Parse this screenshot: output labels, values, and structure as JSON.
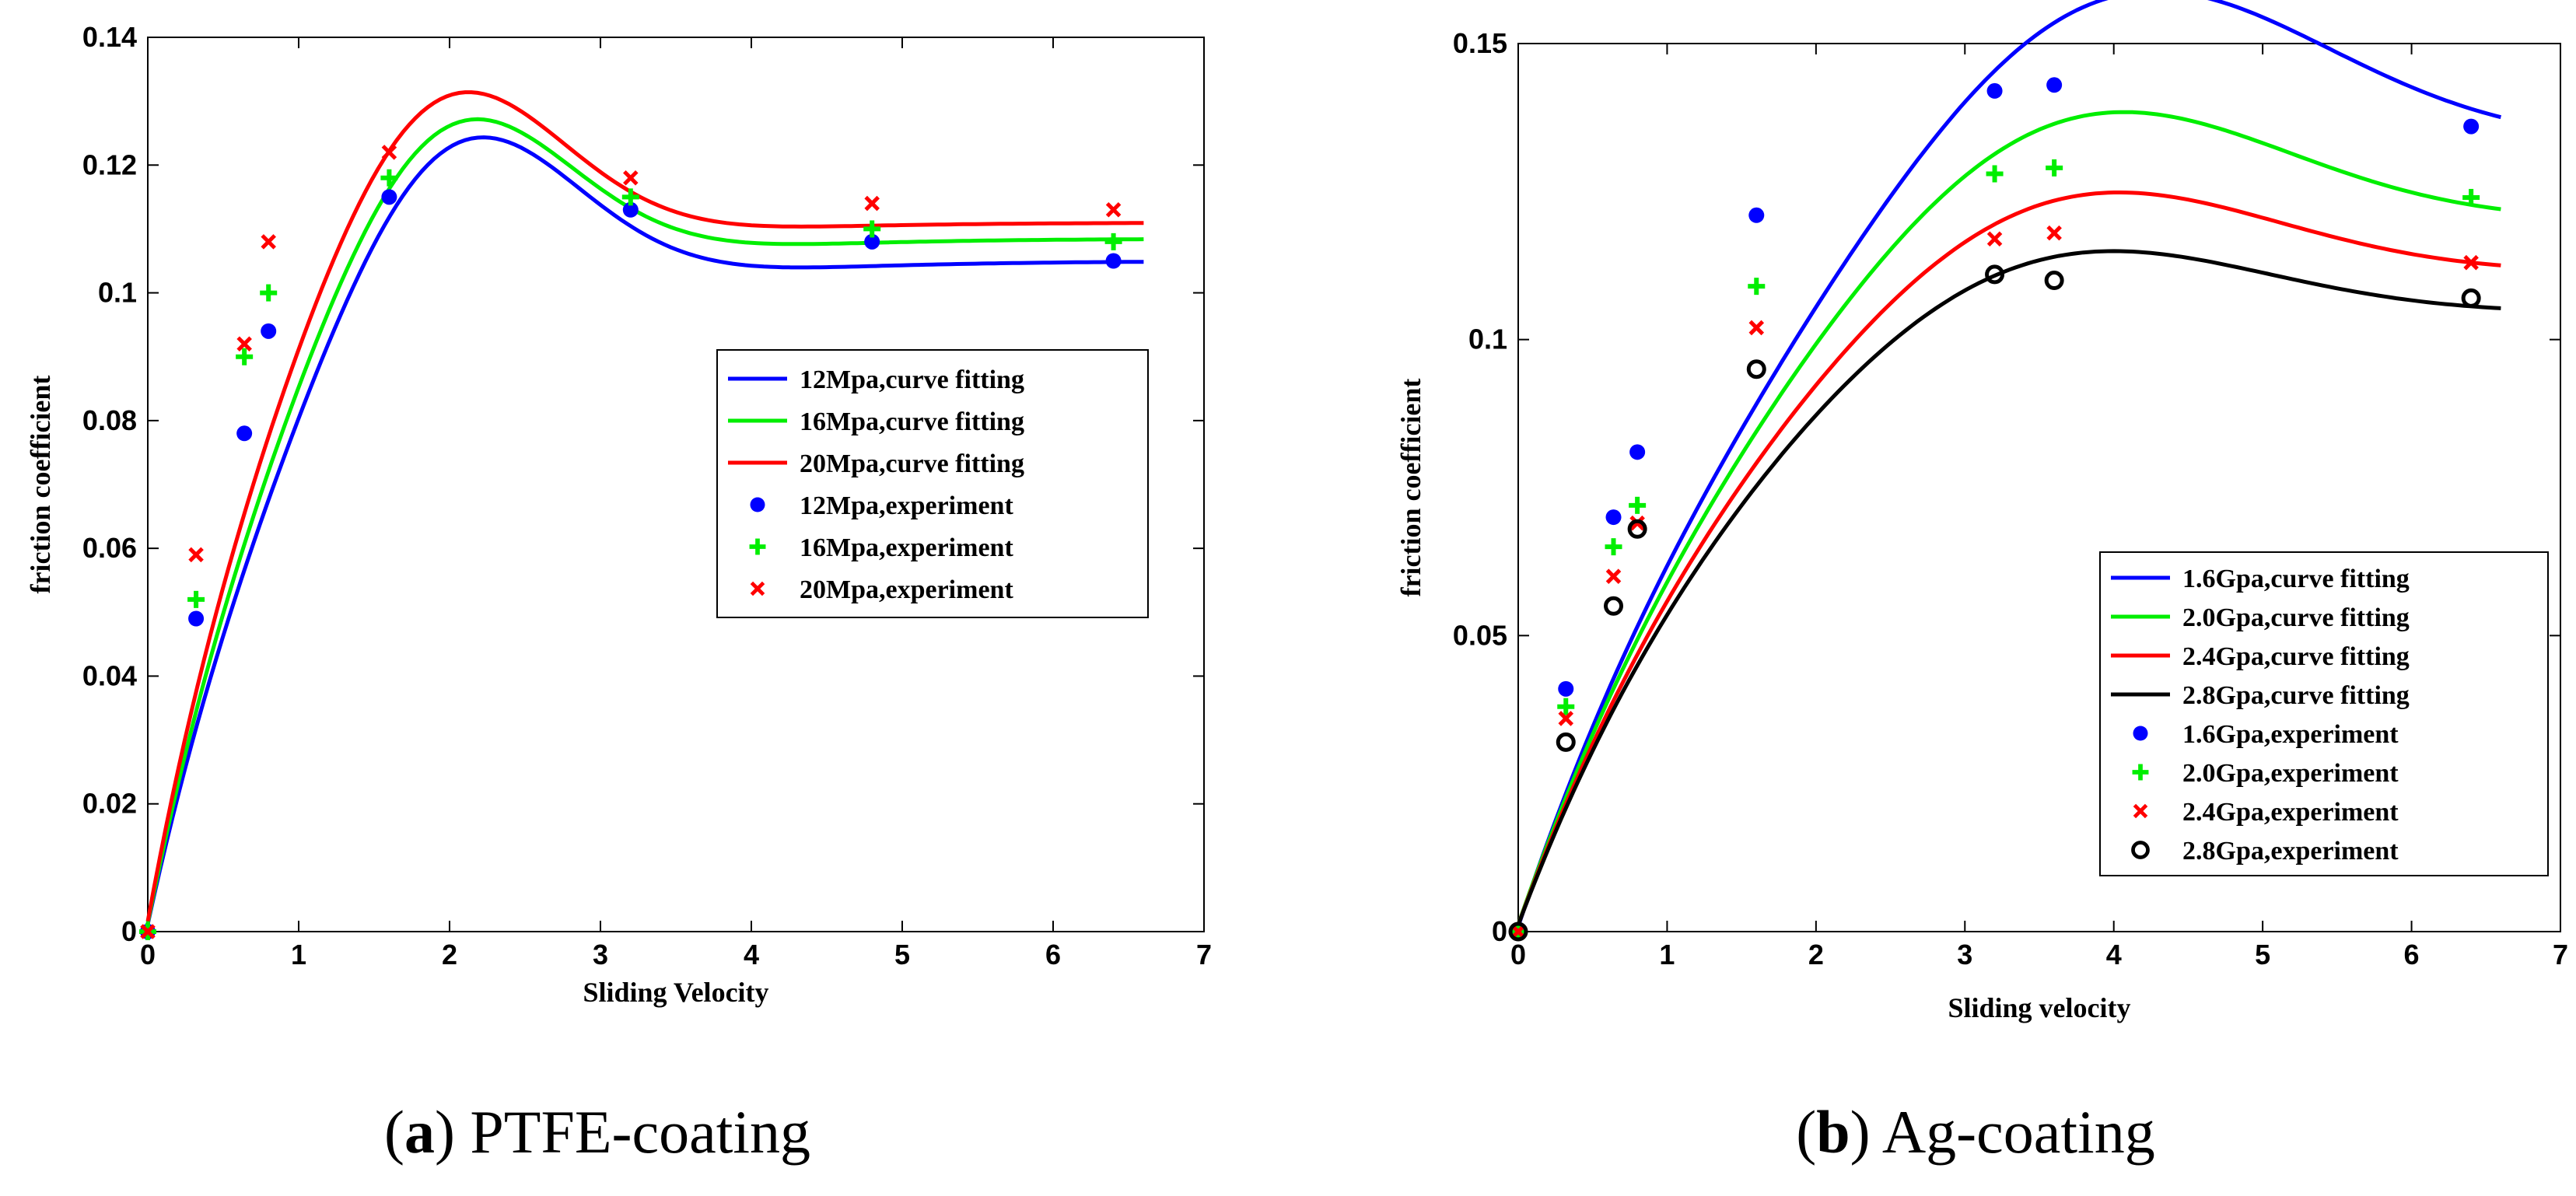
{
  "chart_data": [
    {
      "type": "line",
      "caption": {
        "letter": "a",
        "text": "PTFE-coating"
      },
      "xlabel": "Sliding Velocity",
      "ylabel": "friction coefficient",
      "xlim": [
        0,
        7
      ],
      "ylim": [
        0,
        0.14
      ],
      "xticks": [
        0,
        1,
        2,
        3,
        4,
        5,
        6,
        7
      ],
      "xtick_labels": [
        "0",
        "1",
        "2",
        "3",
        "4",
        "5",
        "6",
        "7"
      ],
      "yticks": [
        0,
        0.02,
        0.04,
        0.06,
        0.08,
        0.1,
        0.12,
        0.14
      ],
      "ytick_labels": [
        "0",
        "0.02",
        "0.04",
        "0.06",
        "0.08",
        "0.1",
        "0.12",
        "0.14"
      ],
      "legend_position": "center-right",
      "fit_range": [
        0,
        6.6
      ],
      "series": [
        {
          "name": "12Mpa",
          "fit_label": "12Mpa,curve fitting",
          "exp_label": "12Mpa,experiment",
          "color": "#0000ff",
          "marker": "dot",
          "fit": {
            "a": 0.105,
            "k": 1.0,
            "b": 0.032,
            "x0": 2.0,
            "w": 1.1
          },
          "x": [
            0,
            0.32,
            0.64,
            0.8,
            1.6,
            3.2,
            4.8,
            6.4
          ],
          "y": [
            0,
            0.049,
            0.078,
            0.094,
            0.115,
            0.113,
            0.108,
            0.105
          ]
        },
        {
          "name": "16Mpa",
          "fit_label": "16Mpa,curve fitting",
          "exp_label": "16Mpa,experiment",
          "color": "#00ee00",
          "marker": "plus",
          "fit": {
            "a": 0.1085,
            "k": 1.05,
            "b": 0.031,
            "x0": 1.95,
            "w": 1.1
          },
          "x": [
            0,
            0.32,
            0.64,
            0.8,
            1.6,
            3.2,
            4.8,
            6.4
          ],
          "y": [
            0,
            0.052,
            0.09,
            0.1,
            0.118,
            0.115,
            0.11,
            0.108
          ]
        },
        {
          "name": "20Mpa",
          "fit_label": "20Mpa,curve fitting",
          "exp_label": "20Mpa,experiment",
          "color": "#ff0000",
          "marker": "cross",
          "fit": {
            "a": 0.111,
            "k": 1.12,
            "b": 0.032,
            "x0": 1.9,
            "w": 1.1
          },
          "x": [
            0,
            0.32,
            0.64,
            0.8,
            1.6,
            3.2,
            4.8,
            6.4
          ],
          "y": [
            0,
            0.059,
            0.092,
            0.108,
            0.122,
            0.118,
            0.114,
            0.113
          ]
        }
      ]
    },
    {
      "type": "line",
      "caption": {
        "letter": "b",
        "text": "Ag-coating"
      },
      "xlabel": "Sliding velocity",
      "ylabel": "friction coefficient",
      "xlim": [
        0,
        7
      ],
      "ylim": [
        0,
        0.15
      ],
      "xticks": [
        0,
        1,
        2,
        3,
        4,
        5,
        6,
        7
      ],
      "xtick_labels": [
        "0",
        "1",
        "2",
        "3",
        "4",
        "5",
        "6",
        "7"
      ],
      "yticks": [
        0,
        0.05,
        0.1,
        0.15
      ],
      "ytick_labels": [
        "0",
        "0.05",
        "0.1",
        "0.15"
      ],
      "legend_position": "bottom-right",
      "fit_range": [
        0,
        6.6
      ],
      "series": [
        {
          "name": "1.6Gpa",
          "fit_label": "1.6Gpa,curve fitting",
          "exp_label": "1.6Gpa,experiment",
          "color": "#0000ff",
          "marker": "dot",
          "fit": {
            "a": 0.135,
            "k": 0.55,
            "b": 0.038,
            "x0": 3.9,
            "w": 2.0
          },
          "x": [
            0,
            0.32,
            0.64,
            0.8,
            1.6,
            3.2,
            3.6,
            6.4
          ],
          "y": [
            0,
            0.041,
            0.07,
            0.081,
            0.121,
            0.142,
            0.143,
            0.136
          ]
        },
        {
          "name": "2.0Gpa",
          "fit_label": "2.0Gpa,curve fitting",
          "exp_label": "2.0Gpa,experiment",
          "color": "#00ee00",
          "marker": "plus",
          "fit": {
            "a": 0.1215,
            "k": 0.58,
            "b": 0.03,
            "x0": 3.6,
            "w": 2.0
          },
          "x": [
            0,
            0.32,
            0.64,
            0.8,
            1.6,
            3.2,
            3.6,
            6.4
          ],
          "y": [
            0,
            0.038,
            0.065,
            0.072,
            0.109,
            0.128,
            0.129,
            0.124
          ]
        },
        {
          "name": "2.4Gpa",
          "fit_label": "2.4Gpa,curve fitting",
          "exp_label": "2.4Gpa,experiment",
          "color": "#ff0000",
          "marker": "cross",
          "fit": {
            "a": 0.1125,
            "k": 0.6,
            "b": 0.024,
            "x0": 3.5,
            "w": 2.0
          },
          "x": [
            0,
            0.32,
            0.64,
            0.8,
            1.6,
            3.2,
            3.6,
            6.4
          ],
          "y": [
            0,
            0.036,
            0.06,
            0.069,
            0.102,
            0.117,
            0.118,
            0.113
          ]
        },
        {
          "name": "2.8Gpa",
          "fit_label": "2.8Gpa,curve fitting",
          "exp_label": "2.8Gpa,experiment",
          "color": "#000000",
          "marker": "circle",
          "fit": {
            "a": 0.1055,
            "k": 0.62,
            "b": 0.02,
            "x0": 3.4,
            "w": 2.0
          },
          "x": [
            0,
            0.32,
            0.64,
            0.8,
            1.6,
            3.2,
            3.6,
            6.4
          ],
          "y": [
            0,
            0.032,
            0.055,
            0.068,
            0.095,
            0.111,
            0.11,
            0.107
          ]
        }
      ]
    }
  ]
}
